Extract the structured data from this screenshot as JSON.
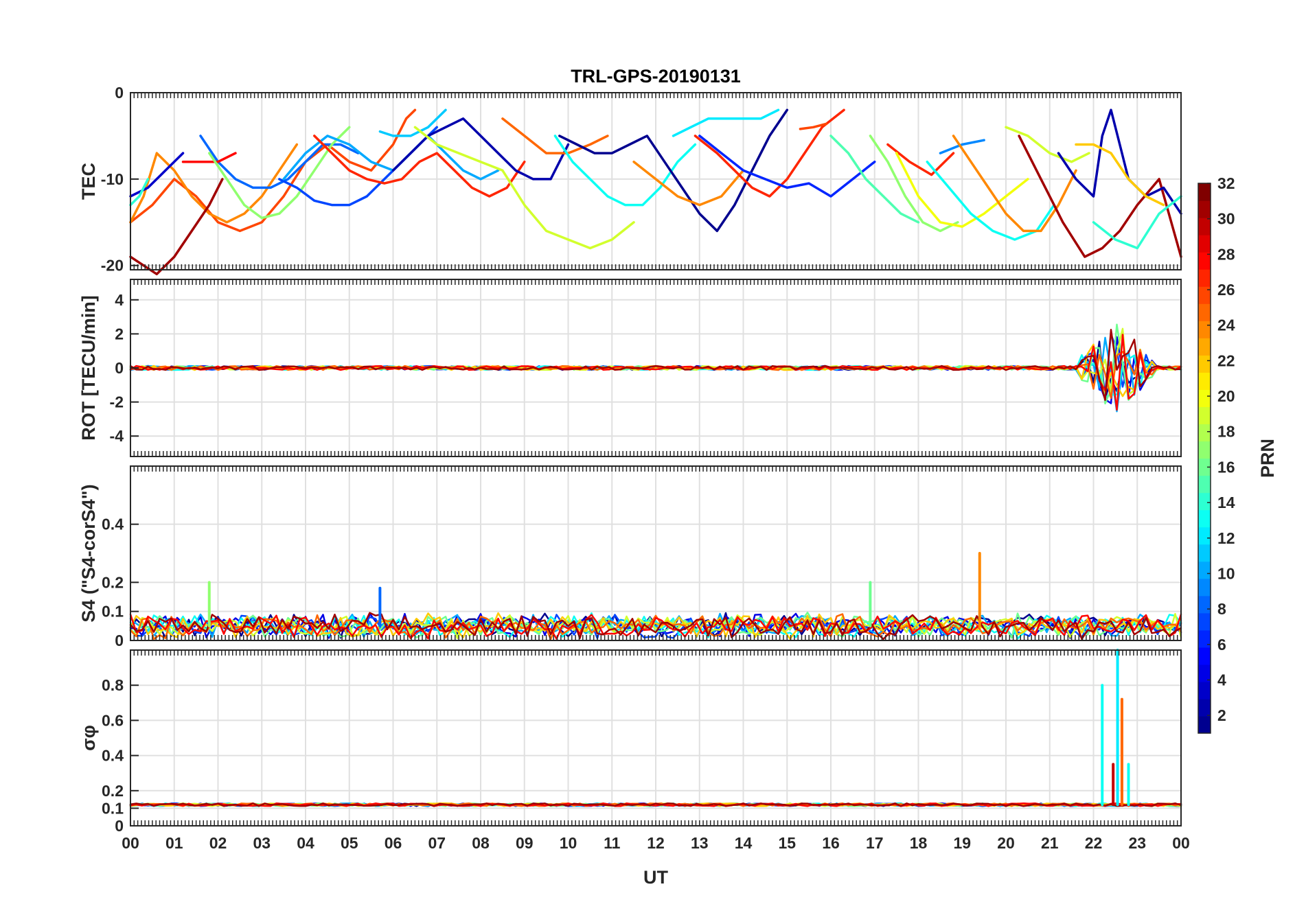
{
  "chart_data": {
    "type": "line",
    "title": "TRL-GPS-20190131",
    "xlabel": "UT",
    "xticks": [
      "00",
      "01",
      "02",
      "03",
      "04",
      "05",
      "06",
      "07",
      "08",
      "09",
      "10",
      "11",
      "12",
      "13",
      "14",
      "15",
      "16",
      "17",
      "18",
      "19",
      "20",
      "21",
      "22",
      "23",
      "00"
    ],
    "xlim": [
      0,
      24
    ],
    "grid": true,
    "colorbar": {
      "label": "PRN",
      "range": [
        1,
        32
      ],
      "ticks": [
        "2",
        "4",
        "6",
        "8",
        "10",
        "12",
        "14",
        "16",
        "18",
        "20",
        "22",
        "24",
        "26",
        "28",
        "30",
        "32"
      ],
      "colormap": [
        "#00008f",
        "#0000ff",
        "#0080ff",
        "#00ffff",
        "#80ff80",
        "#ffff00",
        "#ff8000",
        "#ff0000",
        "#800000"
      ]
    },
    "panels": [
      {
        "id": "tec",
        "ylabel": "TEC",
        "ylim": [
          -20.5,
          0
        ],
        "yticks": [
          {
            "v": 0,
            "t": "0"
          },
          {
            "v": -10,
            "t": "-10"
          },
          {
            "v": -20,
            "t": "-20"
          }
        ],
        "series": [
          {
            "prn": 26,
            "x": [
              0,
              0.5,
              1,
              1.5,
              2,
              2.5,
              3,
              3.5,
              4,
              4.5,
              5,
              5.5,
              6,
              6.3,
              6.5
            ],
            "y": [
              -15,
              -13,
              -10,
              -12,
              -15,
              -16,
              -15,
              -12,
              -8,
              -6,
              -8,
              -9,
              -6,
              -3,
              -2
            ]
          },
          {
            "prn": 24,
            "x": [
              0,
              0.3,
              0.6,
              1,
              1.4,
              1.8,
              2.2,
              2.6,
              3,
              3.4,
              3.8
            ],
            "y": [
              -15,
              -12,
              -7,
              -9,
              -12,
              -14,
              -15,
              -14,
              -12,
              -9,
              -6
            ]
          },
          {
            "prn": 8,
            "x": [
              1.6,
              2,
              2.4,
              2.8,
              3.2,
              3.6,
              4,
              4.4,
              4.8,
              5.2
            ],
            "y": [
              -5,
              -8,
              -10,
              -11,
              -11,
              -10,
              -8,
              -6,
              -6,
              -7
            ]
          },
          {
            "prn": 3,
            "x": [
              0,
              0.4,
              0.8,
              1.2
            ],
            "y": [
              -12,
              -11,
              -9,
              -7
            ]
          },
          {
            "prn": 14,
            "x": [
              0,
              0.2,
              0.4
            ],
            "y": [
              -13,
              -12,
              -10
            ]
          },
          {
            "prn": 31,
            "x": [
              0,
              0.3,
              0.6,
              1,
              1.4,
              1.8,
              2.1
            ],
            "y": [
              -19,
              -20,
              -21,
              -19,
              -16,
              -13,
              -10
            ]
          },
          {
            "prn": 28,
            "x": [
              1.2,
              1.6,
              2,
              2.4
            ],
            "y": [
              -8,
              -8,
              -8,
              -7
            ]
          },
          {
            "prn": 17,
            "x": [
              1.8,
              2.2,
              2.6,
              3,
              3.4,
              3.8,
              4.2,
              4.6,
              5
            ],
            "y": [
              -7,
              -10,
              -13,
              -14.5,
              -14,
              -12,
              -9,
              -6,
              -4
            ]
          },
          {
            "prn": 7,
            "x": [
              3.4,
              3.8,
              4.2,
              4.6,
              5,
              5.4,
              5.8,
              6.2,
              6.6,
              7
            ],
            "y": [
              -10,
              -11,
              -12.5,
              -13,
              -13,
              -12,
              -10,
              -8,
              -6,
              -4
            ]
          },
          {
            "prn": 10,
            "x": [
              3.5,
              4,
              4.5,
              5,
              5.5,
              6,
              6.4,
              6.8,
              7.2,
              7.6,
              8,
              8.4
            ],
            "y": [
              -10,
              -7,
              -5,
              -6,
              -8,
              -9,
              -7,
              -5,
              -7,
              -9,
              -10,
              -9
            ]
          },
          {
            "prn": 27,
            "x": [
              4.2,
              4.6,
              5,
              5.4,
              5.8,
              6.2,
              6.6,
              7,
              7.4,
              7.8,
              8.2,
              8.6,
              9
            ],
            "y": [
              -5,
              -7,
              -9,
              -10,
              -10.5,
              -10,
              -8,
              -7,
              -9,
              -11,
              -12,
              -11,
              -8
            ]
          },
          {
            "prn": 11,
            "x": [
              5.7,
              6,
              6.4,
              6.8,
              7.2
            ],
            "y": [
              -4.5,
              -5,
              -5,
              -4,
              -2
            ]
          },
          {
            "prn": 2,
            "x": [
              6,
              6.4,
              6.8,
              7.2,
              7.6,
              8,
              8.4,
              8.8,
              9.2,
              9.6,
              10
            ],
            "y": [
              -9,
              -7,
              -5,
              -4,
              -3,
              -5,
              -7,
              -9,
              -10,
              -10,
              -6
            ]
          },
          {
            "prn": 19,
            "x": [
              6.5,
              7,
              7.5,
              8,
              8.5,
              9,
              9.5,
              10,
              10.5,
              11,
              11.5
            ],
            "y": [
              -4,
              -6,
              -7,
              -8,
              -9,
              -13,
              -16,
              -17,
              -18,
              -17,
              -15
            ]
          },
          {
            "prn": 25,
            "x": [
              8.5,
              9,
              9.5,
              10,
              10.5,
              10.9
            ],
            "y": [
              -3,
              -5,
              -7,
              -7,
              -6,
              -5
            ]
          },
          {
            "prn": 13,
            "x": [
              9.7,
              10.1,
              10.5,
              10.9,
              11.3,
              11.7,
              12.1,
              12.5,
              12.9
            ],
            "y": [
              -5,
              -8,
              -10,
              -12,
              -13,
              -13,
              -11,
              -8,
              -6
            ]
          },
          {
            "prn": 1,
            "x": [
              9.8,
              10.2,
              10.6,
              11,
              11.4,
              11.8,
              12.2,
              12.6,
              13,
              13.4,
              13.8,
              14.2,
              14.6,
              15
            ],
            "y": [
              -5,
              -6,
              -7,
              -7,
              -6,
              -5,
              -8,
              -11,
              -14,
              -16,
              -13,
              -9,
              -5,
              -2
            ]
          },
          {
            "prn": 24,
            "x": [
              11.5,
              12,
              12.5,
              13,
              13.5,
              14
            ],
            "y": [
              -8,
              -10,
              -12,
              -13,
              -12,
              -9
            ]
          },
          {
            "prn": 12,
            "x": [
              12.4,
              12.8,
              13.2,
              13.6,
              14,
              14.4,
              14.8
            ],
            "y": [
              -5,
              -4,
              -3,
              -3,
              -3,
              -3,
              -2
            ]
          },
          {
            "prn": 27,
            "x": [
              12.9,
              13.4,
              13.8,
              14.2,
              14.6,
              15,
              15.4,
              15.8,
              16.3
            ],
            "y": [
              -5,
              -7,
              -9,
              -11,
              -12,
              -10,
              -7,
              -4,
              -2
            ]
          },
          {
            "prn": 6,
            "x": [
              13,
              13.5,
              14,
              14.5,
              15,
              15.5,
              16,
              16.5,
              17
            ],
            "y": [
              -5,
              -7,
              -9,
              -10,
              -11,
              -10.5,
              -12,
              -10,
              -8
            ]
          },
          {
            "prn": 26,
            "x": [
              15.3,
              15.6,
              15.9
            ],
            "y": [
              -4.2,
              -4,
              -3.6
            ]
          },
          {
            "prn": 15,
            "x": [
              16,
              16.4,
              16.8,
              17.2,
              17.6,
              18
            ],
            "y": [
              -5,
              -7,
              -10,
              -12,
              -14,
              -15
            ]
          },
          {
            "prn": 17,
            "x": [
              16.9,
              17.3,
              17.7,
              18.1,
              18.5,
              18.9
            ],
            "y": [
              -5,
              -8,
              -12,
              -15,
              -16,
              -15
            ]
          },
          {
            "prn": 27,
            "x": [
              17.3,
              17.8,
              18.3,
              18.8
            ],
            "y": [
              -6,
              -8,
              -9.5,
              -7
            ]
          },
          {
            "prn": 20,
            "x": [
              17.5,
              18,
              18.5,
              19,
              19.5,
              20,
              20.5
            ],
            "y": [
              -7,
              -12,
              -15,
              -15.5,
              -14,
              -12,
              -10
            ]
          },
          {
            "prn": 13,
            "x": [
              18.2,
              18.7,
              19.2,
              19.7,
              20.2,
              20.7,
              21.1
            ],
            "y": [
              -8,
              -11,
              -14,
              -16,
              -17,
              -16,
              -13
            ]
          },
          {
            "prn": 9,
            "x": [
              18.5,
              19,
              19.5
            ],
            "y": [
              -7,
              -6,
              -5.5
            ]
          },
          {
            "prn": 24,
            "x": [
              18.8,
              19.2,
              19.6,
              20,
              20.4,
              20.8,
              21.2,
              21.6
            ],
            "y": [
              -5,
              -8,
              -11,
              -14,
              -16,
              -16,
              -13,
              -9
            ]
          },
          {
            "prn": 19,
            "x": [
              20,
              20.5,
              21,
              21.5,
              21.9
            ],
            "y": [
              -4,
              -5,
              -7,
              -8,
              -7
            ]
          },
          {
            "prn": 31,
            "x": [
              20.3,
              20.8,
              21.3,
              21.8,
              22.2,
              22.6,
              23,
              23.5,
              24
            ],
            "y": [
              -5,
              -10,
              -15,
              -19,
              -18,
              -16,
              -13,
              -10,
              -19
            ]
          },
          {
            "prn": 2,
            "x": [
              21.2,
              21.6,
              22,
              22.2,
              22.4,
              22.6,
              22.8,
              23.2,
              23.6,
              24
            ],
            "y": [
              -7,
              -10,
              -12,
              -5,
              -2,
              -6,
              -10,
              -12,
              -11,
              -14
            ]
          },
          {
            "prn": 22,
            "x": [
              21.6,
              22,
              22.4,
              22.8,
              23.2,
              23.6
            ],
            "y": [
              -6,
              -6,
              -7,
              -10,
              -12,
              -13
            ]
          },
          {
            "prn": 14,
            "x": [
              22,
              22.5,
              23,
              23.5,
              24
            ],
            "y": [
              -15,
              -17,
              -18,
              -14,
              -12
            ]
          }
        ]
      },
      {
        "id": "rot",
        "ylabel": "ROT [TECU/min]",
        "ylim": [
          -5.2,
          5.2
        ],
        "yticks": [
          {
            "v": 4,
            "t": "4"
          },
          {
            "v": 2,
            "t": "2"
          },
          {
            "v": 0,
            "t": "0"
          },
          {
            "v": -2,
            "t": "-2"
          },
          {
            "v": -4,
            "t": "-4"
          }
        ],
        "baseline": 0,
        "noise": 0.12,
        "burst": {
          "start": 21.7,
          "end": 23.4,
          "peak": 22.5,
          "amplitude": 2.8
        }
      },
      {
        "id": "s4",
        "ylabel": "S4 (\"S4-corS4\")",
        "ylim": [
          0,
          0.6
        ],
        "yticks": [
          {
            "v": 0,
            "t": "0"
          },
          {
            "v": 0.1,
            "t": "0.1"
          },
          {
            "v": 0.2,
            "t": "0.2"
          },
          {
            "v": 0.4,
            "t": "0.4"
          }
        ],
        "baseline": 0.05,
        "noise": 0.03,
        "spikes": [
          {
            "x": 19.4,
            "y": 0.3,
            "prn": 24
          },
          {
            "x": 1.8,
            "y": 0.2,
            "prn": 17
          },
          {
            "x": 16.9,
            "y": 0.2,
            "prn": 16
          },
          {
            "x": 5.7,
            "y": 0.18,
            "prn": 8
          }
        ]
      },
      {
        "id": "sigphi",
        "ylabel": "σφ",
        "ylim": [
          0,
          1
        ],
        "yticks": [
          {
            "v": 0,
            "t": "0"
          },
          {
            "v": 0.1,
            "t": "0.1"
          },
          {
            "v": 0.2,
            "t": "0.2"
          },
          {
            "v": 0.4,
            "t": "0.4"
          },
          {
            "v": 0.6,
            "t": "0.6"
          },
          {
            "v": 0.8,
            "t": "0.8"
          }
        ],
        "baseline": 0.12,
        "noise": 0.008,
        "spikes": [
          {
            "x": 22.2,
            "y": 0.8,
            "prn": 13
          },
          {
            "x": 22.55,
            "y": 1.0,
            "prn": 12
          },
          {
            "x": 22.65,
            "y": 0.72,
            "prn": 25
          },
          {
            "x": 22.45,
            "y": 0.35,
            "prn": 30
          },
          {
            "x": 22.8,
            "y": 0.35,
            "prn": 13
          }
        ]
      }
    ]
  }
}
